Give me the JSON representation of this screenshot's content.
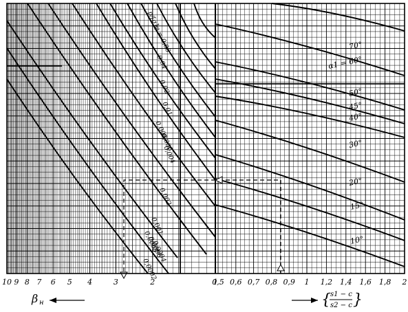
{
  "chart_data": [
    {
      "type": "line",
      "panel": "left",
      "title": "",
      "xlabel": "βн",
      "x_direction": "decreasing to the left",
      "x_scale": "log",
      "xlim": [
        1,
        10
      ],
      "x_ticks": [
        "10",
        "9",
        "8",
        "7",
        "6",
        "5",
        "4",
        "3",
        "2",
        "1"
      ],
      "grid": true,
      "curve_parameter_label": "p / [σ]φ",
      "series": [
        {
          "name": "0.06",
          "label": "p/[σ]φ = 0.06"
        },
        {
          "name": "0.04",
          "label": "0.04"
        },
        {
          "name": "0.02",
          "label": "0.02"
        },
        {
          "name": "0.01",
          "label": "0.01"
        },
        {
          "name": "0.008",
          "label": "0.008"
        },
        {
          "name": "0.006",
          "label": "0.006"
        },
        {
          "name": "0.004",
          "label": "0.004"
        },
        {
          "name": "0.002",
          "label": "0.002"
        },
        {
          "name": "0.001",
          "label": "0.001"
        },
        {
          "name": "0.0008",
          "label": "0.0008"
        },
        {
          "name": "0.0006",
          "label": "0.0006"
        },
        {
          "name": "0.0004",
          "label": "0.0004"
        },
        {
          "name": "0.0002",
          "label": "0.0002"
        }
      ]
    },
    {
      "type": "line",
      "panel": "right",
      "title": "",
      "xlabel": "(s1 − c) / (s2 − c)",
      "xlim": [
        0.5,
        2
      ],
      "x_ticks": [
        "0,5",
        "0,6",
        "0,7",
        "0,8",
        "0,9",
        "1",
        "1,2",
        "1,4",
        "1,6",
        "1,8",
        "2"
      ],
      "grid": true,
      "curve_parameter_label": "α1",
      "series": [
        {
          "name": "70°",
          "label": "70°"
        },
        {
          "name": "60°",
          "label": "α1 = 60°"
        },
        {
          "name": "50°",
          "label": "50°"
        },
        {
          "name": "45°",
          "label": "45°"
        },
        {
          "name": "40°",
          "label": "40°"
        },
        {
          "name": "30°",
          "label": "30°"
        },
        {
          "name": "20°",
          "label": "20°"
        },
        {
          "name": "15°",
          "label": "15°"
        },
        {
          "name": "10°",
          "label": "10°"
        }
      ]
    }
  ],
  "axis_labels": {
    "left_symbol": "β",
    "left_sub": "н",
    "ratio_num": "s1 − c",
    "ratio_den": "s2 − c"
  },
  "left_ticks": [
    "10",
    "9",
    "8",
    "7",
    "6",
    "5",
    "4",
    "3",
    "2",
    "1"
  ],
  "right_ticks": [
    "0,5",
    "0,6",
    "0,7",
    "0,8",
    "0,9",
    "1",
    "1,2",
    "1,4",
    "1,6",
    "1,8",
    "2"
  ],
  "left_curve_labels": [
    "p/[σ]φ = 0,06",
    "0,04",
    "0,02",
    "0,01",
    "0,008",
    "0,006",
    "0,004",
    "0,002",
    "0,001",
    "0,0008",
    "0,0006",
    "0,0004",
    "0,0002"
  ],
  "right_curve_labels": [
    "70°",
    "α1 = 60°",
    "50°",
    "45°",
    "40°",
    "30°",
    "20°",
    "15°",
    "10°"
  ]
}
